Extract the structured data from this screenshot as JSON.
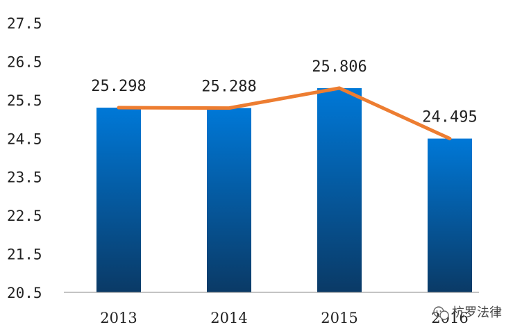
{
  "chart_data": {
    "type": "bar",
    "categories": [
      "2013",
      "2014",
      "2015",
      "2016"
    ],
    "values": [
      25.298,
      25.288,
      25.806,
      24.495
    ],
    "data_labels": [
      "25.298",
      "25.288",
      "25.806",
      "24.495"
    ],
    "overlay_line": {
      "values": [
        25.298,
        25.288,
        25.806,
        24.495
      ],
      "color": "#ED7D31"
    },
    "yticks": [
      "27.5",
      "26.5",
      "25.5",
      "24.5",
      "23.5",
      "22.5",
      "21.5",
      "20.5"
    ],
    "ylim": [
      20.5,
      27.5
    ],
    "grid": false,
    "legend": "none",
    "bar_color_top": "#0078D7",
    "bar_color_bottom": "#0A3A66"
  },
  "watermark": {
    "text": "杭罗法律",
    "icon": "wechat-icon"
  }
}
